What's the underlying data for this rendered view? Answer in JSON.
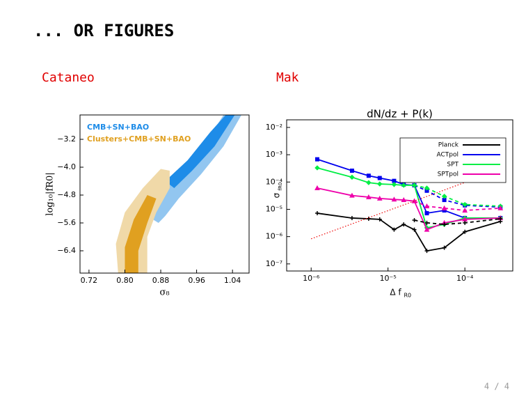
{
  "slide": {
    "title": "... OR FIGURES",
    "left_author": "Cataneo",
    "right_author": "Mak",
    "page": "4 / 4"
  },
  "chart_data": [
    {
      "type": "contour",
      "xlabel": "σ₈",
      "ylabel": "log₁₀|fR0|",
      "xlim": [
        0.7,
        1.077
      ],
      "ylim": [
        -7.04,
        -2.5
      ],
      "xticks": [
        0.72,
        {
          "value": 0.8,
          "label": "0.80"
        },
        0.88,
        0.96,
        1.04
      ],
      "yticks": [
        {
          "value": -3.2,
          "label": "−3.2"
        },
        {
          "value": -4.0,
          "label": "−4.0"
        },
        {
          "value": -4.8,
          "label": "−4.8"
        },
        {
          "value": -5.6,
          "label": "−5.6"
        },
        {
          "value": -6.4,
          "label": "−6.4"
        }
      ],
      "series": [
        {
          "name": "CMB+SN+BAO",
          "color": "#1e8ce8",
          "contours": [
            {
              "color": "#92c6f0",
              "x": [
                1.06,
                1.02,
                0.97,
                0.92,
                0.89,
                0.875,
                0.85,
                0.86,
                0.9,
                0.95,
                0.99,
                1.02
              ],
              "y": [
                -2.5,
                -3.4,
                -4.2,
                -4.9,
                -5.4,
                -5.6,
                -5.4,
                -4.9,
                -4.4,
                -3.8,
                -3.1,
                -2.5
              ]
            },
            {
              "color": "#1e8ce8",
              "x": [
                1.045,
                1.0,
                0.95,
                0.91,
                0.89,
                0.94,
                0.99,
                1.025
              ],
              "y": [
                -2.5,
                -3.4,
                -4.1,
                -4.6,
                -4.4,
                -3.8,
                -3.0,
                -2.5
              ]
            }
          ]
        },
        {
          "name": "Clusters+CMB+SN+BAO",
          "color": "#e0a020",
          "contours": [
            {
              "color": "#f0d9a8",
              "x": [
                0.785,
                0.78,
                0.8,
                0.84,
                0.88,
                0.9,
                0.9,
                0.87,
                0.85,
                0.85
              ],
              "y": [
                -7.04,
                -6.2,
                -5.3,
                -4.6,
                -4.05,
                -4.1,
                -4.6,
                -5.3,
                -6.0,
                -7.04
              ]
            },
            {
              "color": "#e0a020",
              "x": [
                0.8,
                0.8,
                0.82,
                0.85,
                0.87,
                0.85,
                0.83,
                0.83
              ],
              "y": [
                -7.04,
                -6.3,
                -5.5,
                -4.8,
                -4.9,
                -5.6,
                -6.4,
                -7.04
              ]
            }
          ]
        }
      ]
    },
    {
      "type": "line",
      "title": "dN/dz + P(k)",
      "xlabel": "Δ f",
      "xlabel_sub": "R0",
      "ylabel": "σ",
      "ylabel_sub": "fR0",
      "xlog": true,
      "ylog": true,
      "legend": "upper right",
      "xlim": [
        4.8e-07,
        0.00042
      ],
      "ylim": [
        5.5e-08,
        0.019
      ],
      "xticks": [
        {
          "value": 1e-06,
          "label": "10⁻⁶"
        },
        {
          "value": 1e-05,
          "label": "10⁻⁵"
        },
        {
          "value": 0.0001,
          "label": "10⁻⁴"
        }
      ],
      "yticks": [
        {
          "value": 1e-07,
          "label": "10⁻⁷"
        },
        {
          "value": 1e-06,
          "label": "10⁻⁶"
        },
        {
          "value": 1e-05,
          "label": "10⁻⁵"
        },
        {
          "value": 0.0001,
          "label": "10⁻⁴"
        },
        {
          "value": 0.001,
          "label": "10⁻³"
        },
        {
          "value": 0.01,
          "label": "10⁻²"
        }
      ],
      "x": [
        1.2e-06,
        3.4e-06,
        5.6e-06,
        7.8e-06,
        1.2e-05,
        1.6e-05,
        2.2e-05,
        3.2e-05,
        5.4e-05,
        0.0001,
        0.00029
      ],
      "series": [
        {
          "name": "Planck",
          "color": "#000000",
          "style": "solid",
          "marker": "plus",
          "values": [
            7.2e-06,
            4.8e-06,
            4.5e-06,
            4.3e-06,
            1.8e-06,
            2.8e-06,
            1.8e-06,
            3e-07,
            3.9e-07,
            1.5e-06,
            3.6e-06
          ]
        },
        {
          "name": "ACTpol",
          "color": "#0000ee",
          "style": "solid",
          "marker": "square",
          "values": [
            0.00068,
            0.00026,
            0.00017,
            0.00014,
            0.00011,
            8.1e-05,
            7.6e-05,
            7.2e-06,
            9.1e-06,
            4.8e-06,
            4.8e-06
          ]
        },
        {
          "name": "SPT",
          "color": "#00ee44",
          "style": "solid",
          "marker": "diamond",
          "values": [
            0.00033,
            0.00015,
            9.5e-05,
            8.5e-05,
            8.1e-05,
            7.6e-05,
            7.6e-05,
            2.1e-06,
            2.8e-06,
            4.8e-06,
            4.8e-06
          ]
        },
        {
          "name": "SPTpol",
          "color": "#ee00aa",
          "style": "solid",
          "marker": "triangle",
          "values": [
            6e-05,
            3.2e-05,
            2.8e-05,
            2.5e-05,
            2.3e-05,
            2.2e-05,
            2e-05,
            1.8e-06,
            3.2e-06,
            4.3e-06,
            4.8e-06
          ]
        },
        {
          "color": "#000000",
          "style": "dashed",
          "marker": "plus",
          "values": [
            null,
            null,
            null,
            null,
            null,
            null,
            4e-06,
            3.2e-06,
            2.8e-06,
            3.2e-06,
            4.5e-06
          ]
        },
        {
          "color": "#0000ee",
          "style": "dashed",
          "marker": "square",
          "values": [
            null,
            null,
            null,
            null,
            null,
            null,
            7.6e-05,
            4.8e-05,
            2.2e-05,
            1.4e-05,
            1.2e-05
          ]
        },
        {
          "color": "#00ee44",
          "style": "dashed",
          "marker": "diamond",
          "values": [
            null,
            null,
            null,
            null,
            null,
            null,
            7.6e-05,
            6e-05,
            3e-05,
            1.5e-05,
            1.3e-05
          ]
        },
        {
          "color": "#ee00aa",
          "style": "dashed",
          "marker": "triangle",
          "values": [
            null,
            null,
            null,
            null,
            null,
            null,
            2e-05,
            1.3e-05,
            1.1e-05,
            9.1e-06,
            1.1e-05
          ]
        },
        {
          "color": "#ee0000",
          "style": "dotted",
          "x": [
            1e-06,
            0.00029
          ],
          "values": [
            8.3e-07,
            0.00029
          ]
        }
      ]
    }
  ]
}
